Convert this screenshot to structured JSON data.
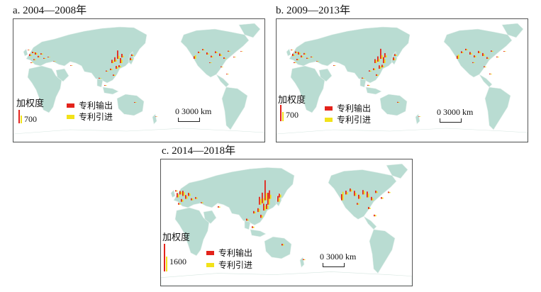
{
  "colors": {
    "land": "#b9dcd2",
    "ice": "#ffffff",
    "border": "#e8f2ee",
    "outflow": "#e3231b",
    "inflow": "#f2e21a",
    "frame": "#555555"
  },
  "legend": {
    "title": "加权度",
    "outflow_label": "专利输出",
    "inflow_label": "专利引进"
  },
  "scale_label": "0  3000 km",
  "panels": [
    {
      "id": "a",
      "caption": "a. 2004—2008年",
      "legend_value": "700"
    },
    {
      "id": "b",
      "caption": "b. 2009—2013年",
      "legend_value": "700"
    },
    {
      "id": "c",
      "caption": "c. 2014—2018年",
      "legend_value": "1600"
    }
  ]
}
